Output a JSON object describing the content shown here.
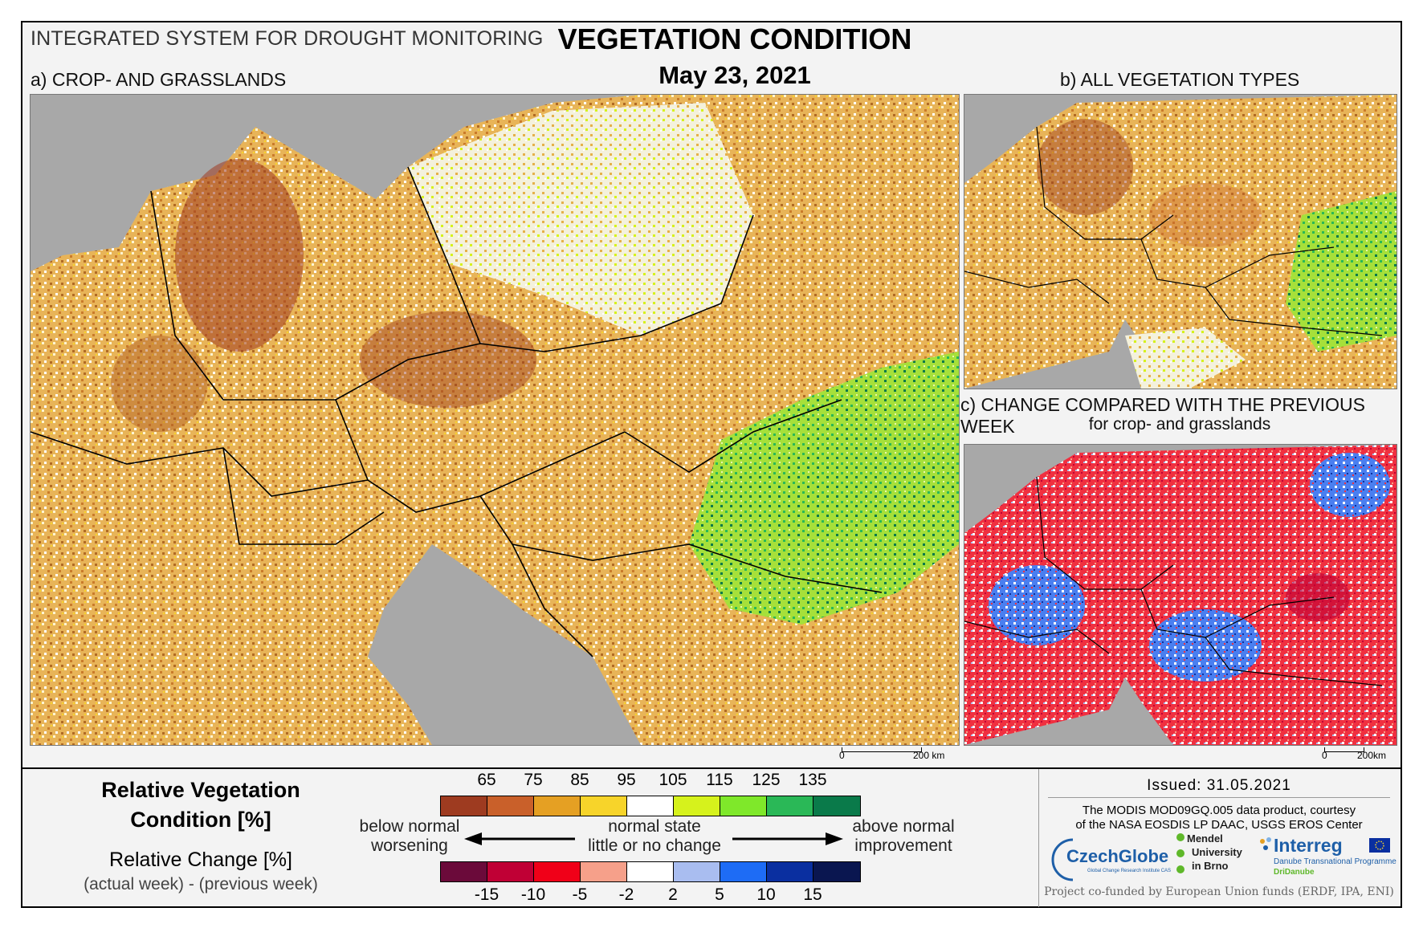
{
  "header": {
    "system_title": "INTEGRATED SYSTEM FOR DROUGHT MONITORING",
    "title": "VEGETATION CONDITION",
    "date": "May 23, 2021"
  },
  "panels": {
    "a_label": "a) CROP- AND GRASSLANDS",
    "b_label": "b) ALL VEGETATION TYPES",
    "c_label": "c) CHANGE COMPARED WITH THE PREVIOUS WEEK",
    "c_sublabel": "for crop- and grasslands"
  },
  "scalebars": {
    "main_zero": "0",
    "main_dist": "200 km",
    "small_zero": "0",
    "small_dist": "200km"
  },
  "legend": {
    "rvc_title_1": "Relative Vegetation",
    "rvc_title_2": "Condition [%]",
    "change_title": "Relative Change [%]",
    "change_sub": "(actual week) - (previous week)",
    "rvc_ticks": [
      "65",
      "75",
      "85",
      "95",
      "105",
      "115",
      "125",
      "135"
    ],
    "rvc_colors": [
      "#9e3b20",
      "#c9602a",
      "#e5a023",
      "#f7d42a",
      "#ffffff",
      "#d6f21c",
      "#7fe82a",
      "#2ab857",
      "#0a7a4a"
    ],
    "change_ticks": [
      "-15",
      "-10",
      "-5",
      "-2",
      "2",
      "5",
      "10",
      "15"
    ],
    "change_colors": [
      "#6b0a3a",
      "#c00035",
      "#f00018",
      "#f6a08a",
      "#ffffff",
      "#a9bdf0",
      "#1e6cf5",
      "#0a2fa0",
      "#0a1650"
    ],
    "left_note_1": "below normal",
    "left_note_2": "worsening",
    "center_note_1": "normal state",
    "center_note_2": "little or no change",
    "right_note_1": "above normal",
    "right_note_2": "improvement"
  },
  "footer": {
    "issued": "Issued: 31.05.2021",
    "credit_1": "The MODIS MOD09GQ.005 data product, courtesy",
    "credit_2": "of the NASA EOSDIS LP DAAC, USGS EROS Center",
    "logo_czechglobe": "CzechGlobe",
    "logo_czechglobe_sub": "Global Change Research Institute CAS",
    "logo_mendel_1": "Mendel",
    "logo_mendel_2": "University",
    "logo_mendel_3": "in Brno",
    "logo_interreg": "Interreg",
    "logo_interreg_sub": "Danube Transnational Programme",
    "logo_interreg_sub2": "DriDanube",
    "cofund": "Project co-funded by European Union funds (ERDF, IPA, ENI)"
  },
  "colors": {
    "sea": "#a8a8a8",
    "brown": "#9e3b20",
    "orange": "#e5a023",
    "green": "#0a7a4a",
    "red": "#f00018",
    "blue": "#1e6cf5"
  }
}
